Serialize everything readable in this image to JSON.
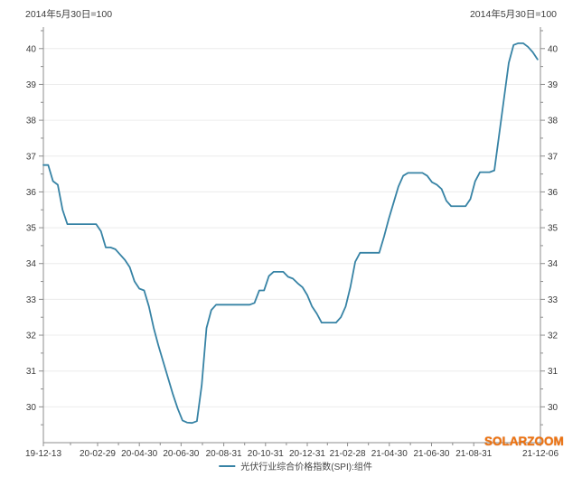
{
  "header": {
    "left_note": "2014年5月30日=100",
    "right_note": "2014年5月30日=100"
  },
  "legend": {
    "label": "光伏行业综合价格指数(SPI):组件"
  },
  "watermark": {
    "text": "SOLARZOOM"
  },
  "colors": {
    "line": "#3783a5",
    "grid": "#ececec",
    "axis": "#8c8c8c",
    "tick_text": "#3a3a3a",
    "watermark": "#ee7310"
  },
  "chart_data": {
    "type": "line",
    "title": "",
    "xlabel": "",
    "ylabel": "",
    "note": "2014年5月30日=100",
    "legend_position": "bottom-center",
    "grid": "horizontal-integer-lines",
    "ylim": [
      29.0,
      40.6
    ],
    "y_ticks": [
      30,
      31,
      32,
      33,
      34,
      35,
      36,
      37,
      38,
      39,
      40
    ],
    "y_minor_tick_step": 0.5,
    "x_total_weeks": 103.6,
    "x_tick_labels": [
      "19-12-13",
      "20-02-29",
      "20-04-30",
      "20-06-30",
      "20-08-31",
      "20-10-31",
      "20-12-31",
      "21-02-28",
      "21-04-30",
      "21-06-30",
      "21-08-31",
      "21-12-06"
    ],
    "x_tick_positions_weeks": [
      0,
      11.3,
      20.0,
      28.7,
      37.6,
      46.3,
      55.0,
      63.4,
      72.1,
      80.9,
      89.7,
      103.6
    ],
    "series": [
      {
        "name": "光伏行业综合价格指数(SPI):组件",
        "start_date": "19-12-13",
        "end_date": "21-12-06",
        "interval": "weekly",
        "values": [
          36.75,
          36.75,
          36.3,
          36.2,
          35.5,
          35.1,
          35.1,
          35.1,
          35.1,
          35.1,
          35.1,
          35.1,
          34.9,
          34.45,
          34.45,
          34.4,
          34.25,
          34.1,
          33.9,
          33.5,
          33.3,
          33.25,
          32.8,
          32.2,
          31.7,
          31.25,
          30.8,
          30.35,
          29.95,
          29.62,
          29.56,
          29.55,
          29.6,
          30.6,
          32.2,
          32.7,
          32.85,
          32.85,
          32.85,
          32.85,
          32.85,
          32.85,
          32.85,
          32.85,
          32.9,
          33.25,
          33.25,
          33.65,
          33.77,
          33.77,
          33.77,
          33.63,
          33.58,
          33.45,
          33.34,
          33.12,
          32.8,
          32.6,
          32.35,
          32.35,
          32.35,
          32.35,
          32.5,
          32.8,
          33.35,
          34.05,
          34.3,
          34.3,
          34.3,
          34.3,
          34.3,
          34.75,
          35.25,
          35.7,
          36.15,
          36.45,
          36.53,
          36.53,
          36.53,
          36.53,
          36.45,
          36.27,
          36.2,
          36.08,
          35.75,
          35.6,
          35.6,
          35.6,
          35.6,
          35.8,
          36.3,
          36.55,
          36.55,
          36.55,
          36.6,
          37.6,
          38.6,
          39.6,
          40.1,
          40.15,
          40.15,
          40.05,
          39.9,
          39.7
        ]
      }
    ]
  }
}
